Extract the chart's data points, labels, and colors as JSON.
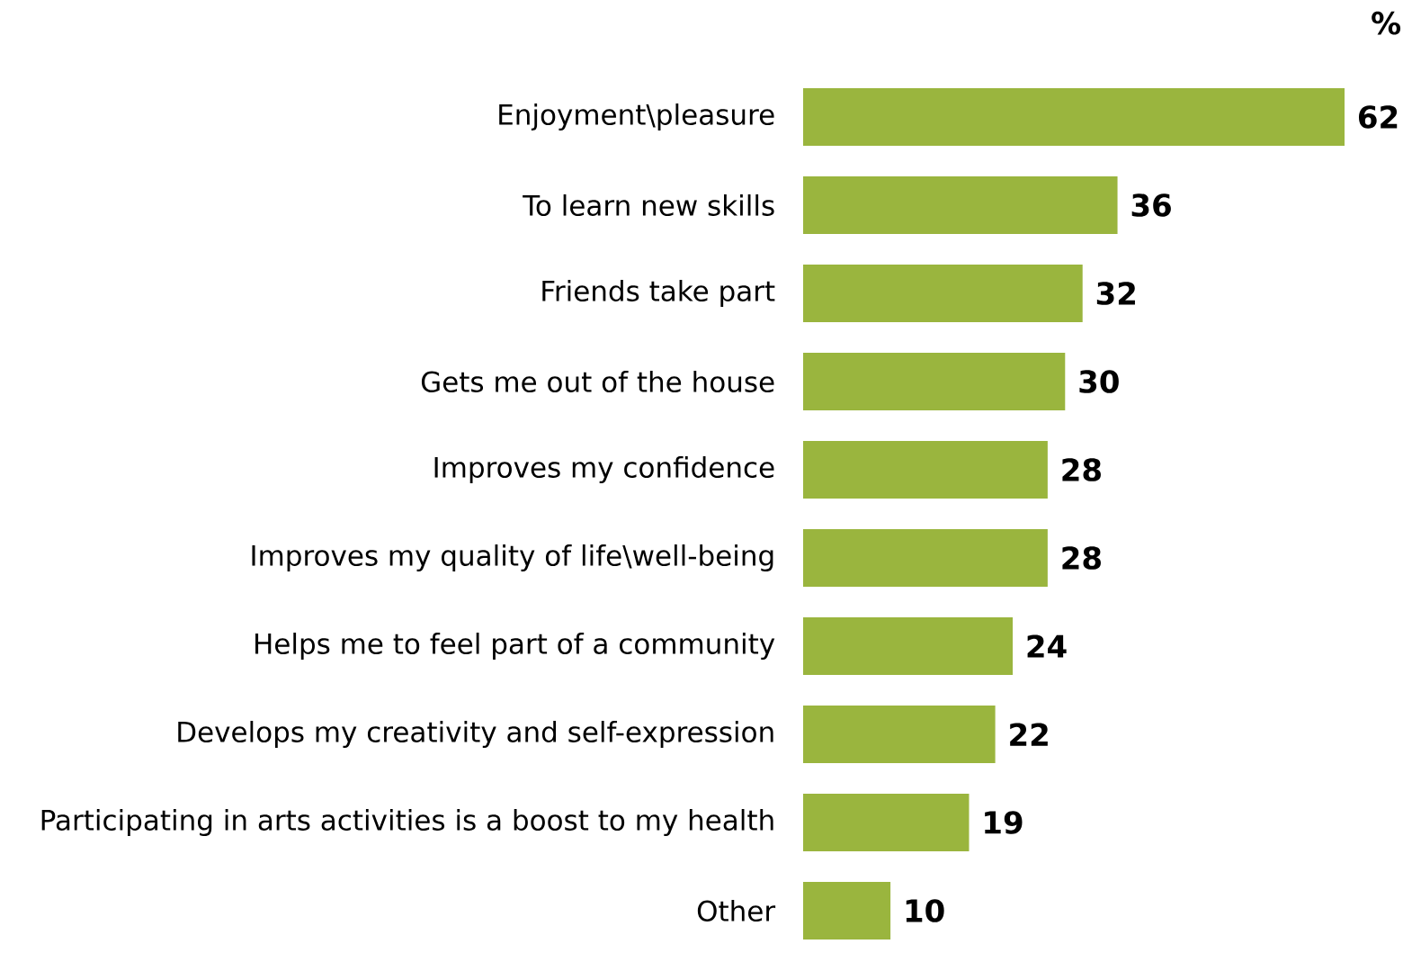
{
  "chart_data": {
    "type": "bar",
    "orientation": "horizontal",
    "title": "%",
    "categories": [
      "Enjoyment\\pleasure",
      "To learn new skills",
      "Friends take part",
      "Gets me out of the house",
      "Improves my confidence",
      "Improves my quality of life\\well-being",
      "Helps me to feel part of a community",
      "Develops my creativity and self-expression",
      "Participating in arts activities is a boost to my health",
      "Other"
    ],
    "values": [
      62,
      36,
      32,
      30,
      28,
      28,
      24,
      22,
      19,
      10
    ],
    "color": "#9ab53e",
    "data_labels": true
  }
}
